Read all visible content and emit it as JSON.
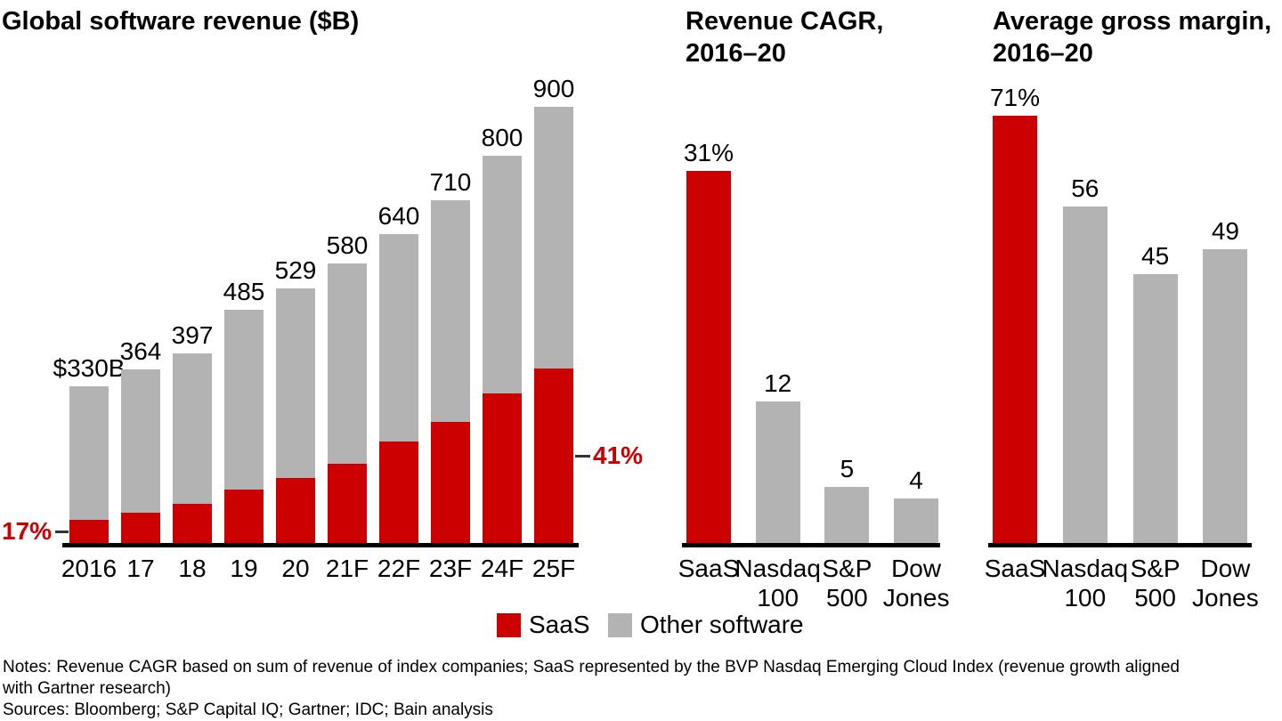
{
  "palette": {
    "saas_red": "#cc0000",
    "other_gray": "#b3b3b3",
    "axis_black": "#000000"
  },
  "chart_data": [
    {
      "type": "stacked-bar",
      "title": "Global software revenue ($B)",
      "categories": [
        "2016",
        "17",
        "18",
        "19",
        "20",
        "21F",
        "22F",
        "23F",
        "24F",
        "25F"
      ],
      "series": [
        {
          "name": "SaaS",
          "color": "#cc0000",
          "values": [
            56,
            71,
            90,
            119,
            141,
            171,
            216,
            257,
            315,
            365
          ]
        },
        {
          "name": "Other software",
          "color": "#b3b3b3",
          "values": [
            274,
            293,
            307,
            366,
            388,
            409,
            424,
            453,
            485,
            535
          ]
        }
      ],
      "totals": [
        330,
        364,
        397,
        485,
        529,
        580,
        640,
        710,
        800,
        900
      ],
      "total_labels": [
        "$330B",
        "364",
        "397",
        "485",
        "529",
        "580",
        "640",
        "710",
        "800",
        "900"
      ],
      "ylim": [
        0,
        900
      ],
      "grid": false,
      "annotations": [
        {
          "text": "17%",
          "meaning": "SaaS share of 2016 total",
          "position": "left-of-2016-bar"
        },
        {
          "text": "41%",
          "meaning": "SaaS share of 25F total",
          "position": "right-of-25F-bar"
        }
      ]
    },
    {
      "type": "bar",
      "title": "Revenue CAGR, 2016–20",
      "title_lines": [
        "Revenue CAGR,",
        "2016–20"
      ],
      "categories": [
        "SaaS",
        "Nasdaq 100",
        "S&P 500",
        "Dow Jones"
      ],
      "values": [
        31,
        12,
        5,
        4
      ],
      "value_labels": [
        "31%",
        "12",
        "5",
        "4"
      ],
      "bar_colors": [
        "#cc0000",
        "#b3b3b3",
        "#b3b3b3",
        "#b3b3b3"
      ],
      "ylim": [
        0,
        31
      ],
      "grid": false
    },
    {
      "type": "bar",
      "title": "Average gross margin, 2016–20",
      "title_lines": [
        "Average gross margin,",
        "2016–20"
      ],
      "categories": [
        "SaaS",
        "Nasdaq 100",
        "S&P 500",
        "Dow Jones"
      ],
      "values": [
        71,
        56,
        45,
        49
      ],
      "value_labels": [
        "71%",
        "56",
        "45",
        "49"
      ],
      "bar_colors": [
        "#cc0000",
        "#b3b3b3",
        "#b3b3b3",
        "#b3b3b3"
      ],
      "ylim": [
        0,
        71
      ],
      "grid": false
    }
  ],
  "legend": {
    "items": [
      {
        "label": "SaaS",
        "color": "#cc0000"
      },
      {
        "label": "Other software",
        "color": "#b3b3b3"
      }
    ]
  },
  "footnotes": {
    "notes_line1": "Notes: Revenue CAGR based on sum of revenue of index companies; SaaS represented by the BVP Nasdaq Emerging Cloud Index (revenue growth aligned",
    "notes_line2": "with Gartner research)",
    "sources": "Sources: Bloomberg; S&P Capital IQ; Gartner; IDC; Bain analysis"
  }
}
